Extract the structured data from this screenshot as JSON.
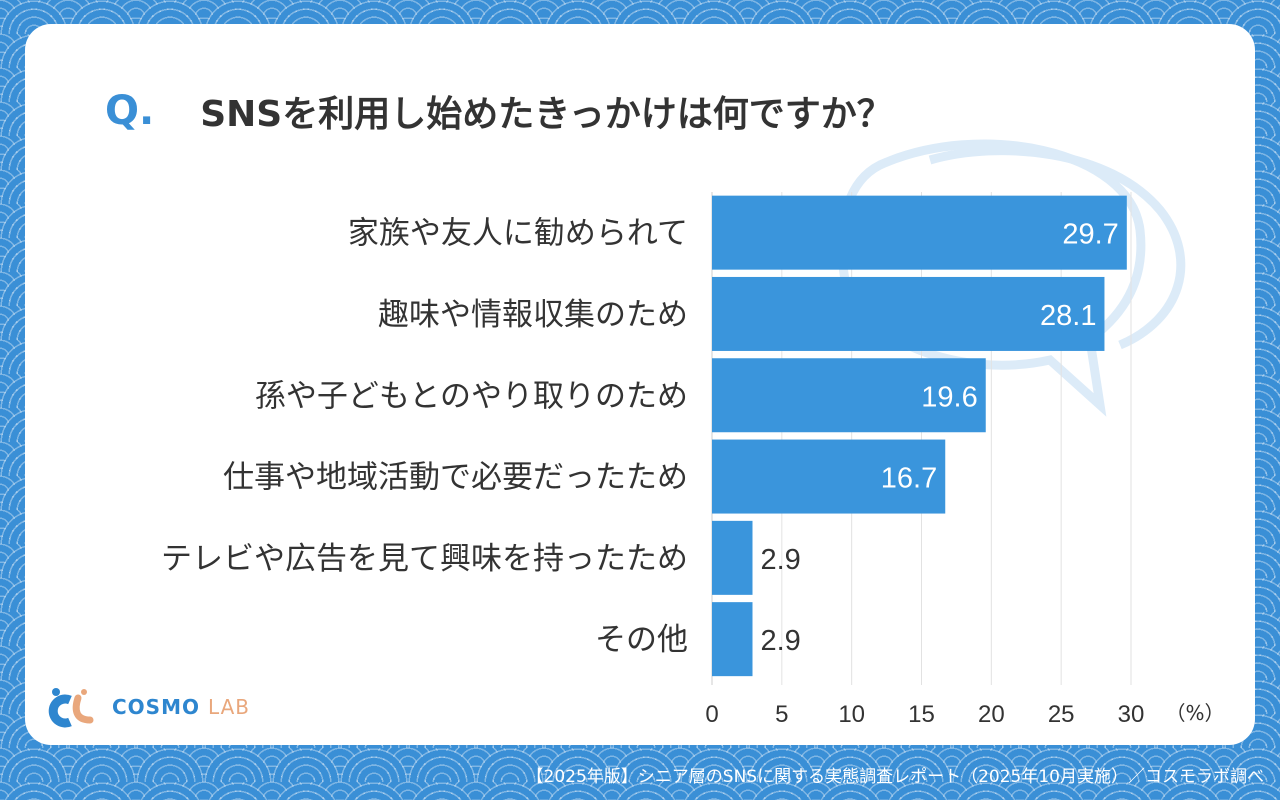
{
  "title": {
    "prefix": "Q.",
    "text": "SNSを利用し始めたきっかけは何ですか？"
  },
  "chart_data": {
    "type": "bar",
    "orientation": "horizontal",
    "categories": [
      "家族や友人に勧められて",
      "趣味や情報収集のため",
      "孫や子どもとのやり取りのため",
      "仕事や地域活動で必要だったため",
      "テレビや広告を見て興味を持ったため",
      "その他"
    ],
    "values": [
      29.7,
      28.1,
      19.6,
      16.7,
      2.9,
      2.9
    ],
    "value_labels": [
      "29.7",
      "28.1",
      "19.6",
      "16.7",
      "2.9",
      "2.9"
    ],
    "xlim": [
      0,
      30
    ],
    "xticks": [
      "0",
      "5",
      "10",
      "15",
      "20",
      "25",
      "30"
    ],
    "xunit": "（%）",
    "grid": true,
    "bar_color": "#3a95dc"
  },
  "logo": {
    "text1": "COSMO",
    "text2": "LAB"
  },
  "footer": "【2025年版】シニア層のSNSに関する実態調査レポート（2025年10月実施）／コスモラボ調べ"
}
